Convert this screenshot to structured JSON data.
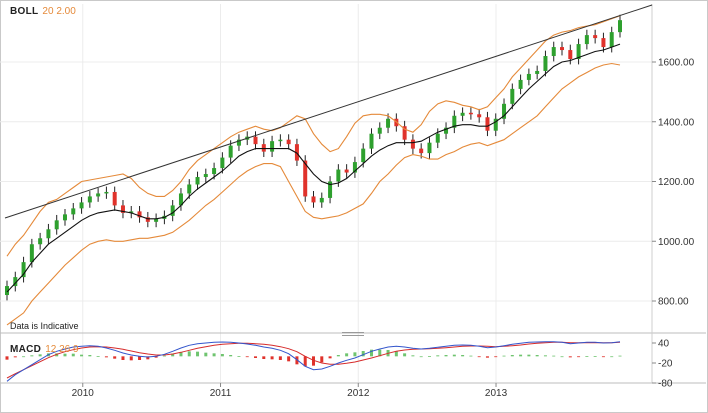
{
  "indicators": {
    "boll": {
      "name": "BOLL",
      "params": "20 2.00"
    },
    "macd": {
      "name": "MACD",
      "params": "12 26 9"
    }
  },
  "disclaimer": "Data is Indicative",
  "colors": {
    "up_candle": "#2ea02e",
    "down_candle": "#e0322b",
    "band": "#e58a3a",
    "middle_band": "#111111",
    "trend_line": "#333333",
    "macd_line": "#3355cc",
    "signal_line": "#d62b2b",
    "histogram_pos": "#6fc46f",
    "histogram_neg": "#e0322b"
  },
  "chart_data": [
    {
      "type": "candlestick",
      "panel": "price",
      "indicator": "Bollinger Bands 20 2.00",
      "x_ticks": [
        "2010",
        "2011",
        "2012",
        "2013"
      ],
      "y_ticks": [
        "800.00",
        "1000.00",
        "1200.00",
        "1400.00",
        "1600.00"
      ],
      "ylim": [
        745,
        1780
      ],
      "grid": true,
      "series": [
        {
          "name": "close",
          "values": [
            850,
            880,
            930,
            990,
            1010,
            1040,
            1070,
            1090,
            1110,
            1130,
            1150,
            1160,
            1165,
            1120,
            1095,
            1100,
            1080,
            1065,
            1075,
            1085,
            1120,
            1160,
            1190,
            1215,
            1225,
            1245,
            1280,
            1320,
            1340,
            1350,
            1325,
            1300,
            1335,
            1340,
            1325,
            1270,
            1150,
            1130,
            1145,
            1200,
            1240,
            1230,
            1265,
            1310,
            1360,
            1380,
            1410,
            1385,
            1340,
            1310,
            1295,
            1330,
            1360,
            1380,
            1420,
            1430,
            1425,
            1415,
            1370,
            1410,
            1460,
            1510,
            1540,
            1560,
            1570,
            1620,
            1650,
            1640,
            1610,
            1660,
            1690,
            1680,
            1650,
            1700,
            1740
          ]
        },
        {
          "name": "upper_band",
          "values": [
            950,
            990,
            1020,
            1060,
            1100,
            1130,
            1140,
            1160,
            1180,
            1200,
            1205,
            1210,
            1215,
            1220,
            1225,
            1210,
            1180,
            1160,
            1150,
            1150,
            1170,
            1200,
            1240,
            1270,
            1290,
            1310,
            1330,
            1350,
            1365,
            1375,
            1385,
            1375,
            1370,
            1380,
            1400,
            1420,
            1410,
            1360,
            1325,
            1300,
            1310,
            1350,
            1395,
            1420,
            1425,
            1425,
            1420,
            1400,
            1375,
            1365,
            1390,
            1435,
            1460,
            1470,
            1465,
            1455,
            1450,
            1440,
            1450,
            1480,
            1510,
            1550,
            1580,
            1610,
            1640,
            1670,
            1690,
            1700,
            1705,
            1715,
            1720,
            1725,
            1735,
            1745,
            1755
          ]
        },
        {
          "name": "middle_band",
          "values": [
            830,
            860,
            890,
            930,
            960,
            990,
            1010,
            1030,
            1050,
            1070,
            1085,
            1095,
            1100,
            1105,
            1100,
            1095,
            1085,
            1075,
            1075,
            1080,
            1095,
            1120,
            1150,
            1175,
            1195,
            1215,
            1235,
            1260,
            1285,
            1300,
            1310,
            1310,
            1310,
            1310,
            1310,
            1295,
            1260,
            1225,
            1200,
            1190,
            1195,
            1210,
            1235,
            1260,
            1285,
            1305,
            1320,
            1330,
            1330,
            1330,
            1335,
            1350,
            1365,
            1375,
            1385,
            1390,
            1390,
            1385,
            1385,
            1400,
            1420,
            1450,
            1480,
            1510,
            1535,
            1560,
            1585,
            1600,
            1605,
            1615,
            1625,
            1635,
            1640,
            1650,
            1660
          ]
        },
        {
          "name": "lower_band",
          "values": [
            720,
            740,
            760,
            800,
            830,
            860,
            890,
            920,
            945,
            970,
            990,
            1000,
            1005,
            1000,
            1000,
            1005,
            1010,
            1010,
            1015,
            1020,
            1030,
            1050,
            1070,
            1095,
            1120,
            1140,
            1165,
            1190,
            1215,
            1235,
            1250,
            1260,
            1260,
            1250,
            1200,
            1150,
            1100,
            1080,
            1075,
            1080,
            1085,
            1095,
            1110,
            1125,
            1160,
            1200,
            1225,
            1255,
            1280,
            1290,
            1285,
            1275,
            1275,
            1290,
            1300,
            1315,
            1325,
            1330,
            1320,
            1330,
            1340,
            1360,
            1380,
            1400,
            1420,
            1450,
            1480,
            1510,
            1530,
            1550,
            1565,
            1580,
            1590,
            1595,
            1590
          ]
        }
      ]
    },
    {
      "type": "line",
      "panel": "macd",
      "indicator": "MACD 12 26 9",
      "y_ticks": [
        "40",
        "-20",
        "-80"
      ],
      "ylim": [
        -90,
        50
      ],
      "series": [
        {
          "name": "MACD",
          "values": [
            -75,
            -55,
            -40,
            -25,
            -10,
            5,
            15,
            22,
            28,
            30,
            32,
            30,
            25,
            18,
            10,
            4,
            0,
            -2,
            0,
            6,
            15,
            25,
            33,
            38,
            40,
            42,
            43,
            42,
            40,
            37,
            33,
            28,
            24,
            18,
            8,
            -10,
            -30,
            -40,
            -38,
            -30,
            -20,
            -12,
            -5,
            5,
            15,
            22,
            28,
            30,
            28,
            24,
            22,
            24,
            27,
            30,
            33,
            34,
            33,
            30,
            26,
            28,
            32,
            36,
            39,
            42,
            43,
            44,
            44,
            42,
            38,
            40,
            42,
            42,
            40,
            41,
            44
          ]
        },
        {
          "name": "Signal",
          "values": [
            -65,
            -52,
            -40,
            -28,
            -16,
            -4,
            6,
            14,
            20,
            25,
            28,
            29,
            28,
            25,
            21,
            16,
            11,
            7,
            4,
            4,
            7,
            12,
            18,
            24,
            29,
            33,
            36,
            38,
            39,
            39,
            38,
            36,
            33,
            29,
            23,
            14,
            0,
            -12,
            -20,
            -24,
            -24,
            -21,
            -17,
            -11,
            -5,
            2,
            9,
            15,
            19,
            21,
            22,
            23,
            24,
            26,
            28,
            30,
            31,
            31,
            30,
            29,
            30,
            32,
            34,
            37,
            39,
            41,
            42,
            42,
            41,
            41,
            41,
            41,
            41,
            41,
            42
          ]
        }
      ]
    }
  ]
}
